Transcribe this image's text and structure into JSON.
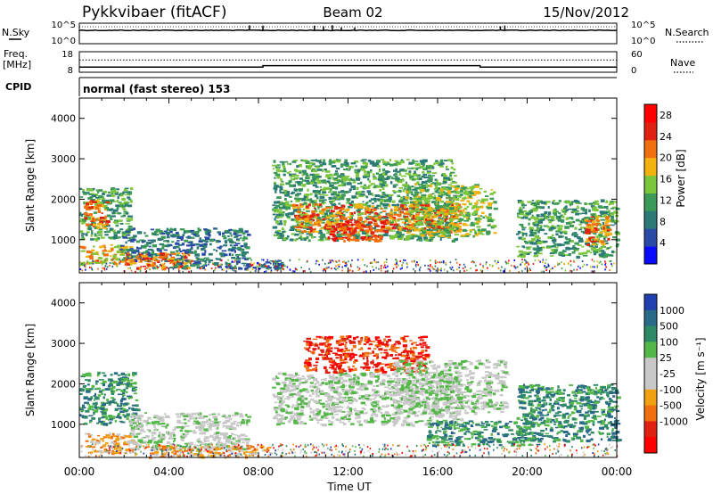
{
  "header": {
    "site": "Pykkvibaer (fitACF)",
    "beam": "Beam 02",
    "date": "15/Nov/2012"
  },
  "nsky_panel": {
    "left_label": "N.Sky",
    "left_ticks": [
      "10^5",
      "10^0"
    ],
    "right_ticks": [
      "10^5",
      "10^0"
    ],
    "right_label": "N.Search"
  },
  "freq_panel": {
    "left_label_1": "Freq.",
    "left_label_2": "[MHz]",
    "left_ticks": [
      "18",
      "8"
    ],
    "right_ticks": [
      "60",
      "0"
    ],
    "right_label": "Nave",
    "freq_steps": [
      {
        "t": 0,
        "v": 10.5
      },
      {
        "t": 8.2,
        "v": 10.5
      },
      {
        "t": 8.2,
        "v": 11.2
      },
      {
        "t": 17.9,
        "v": 11.2
      },
      {
        "t": 17.9,
        "v": 10.5
      },
      {
        "t": 24,
        "v": 10.5
      }
    ],
    "nave_level": 36
  },
  "cpid": {
    "label": "CPID",
    "mode": "normal (fast stereo) 153"
  },
  "colors": {
    "power_scale": [
      "#0a0aff",
      "#2a4aa8",
      "#2c7a76",
      "#3c9a58",
      "#7cc63c",
      "#f2b310",
      "#f07010",
      "#e02010",
      "#ff0000"
    ],
    "velocity_scale": [
      "#2040b0",
      "#2a6a88",
      "#2e8a66",
      "#54b848",
      "#c8c8c8",
      "#c8c8c8",
      "#f0a010",
      "#f07010",
      "#e02010",
      "#ff0000"
    ],
    "ground_scatter": "#bebebe"
  },
  "chart_data": [
    {
      "type": "line",
      "title": "",
      "series": [
        {
          "name": "N.Sky"
        }
      ],
      "xlim": [
        0,
        24
      ],
      "ylabel": "N.Sky",
      "y2label": "N.Search",
      "spikes_hours": [
        7.6,
        8.2,
        10.5,
        10.9,
        11.3,
        11.7,
        12.3,
        18.8,
        19.0
      ],
      "baseline": "near 10^0"
    },
    {
      "type": "line",
      "series": [
        {
          "name": "Freq."
        },
        {
          "name": "Nave"
        }
      ],
      "xlim": [
        0,
        24
      ],
      "ylim": [
        8,
        18
      ],
      "y2lim": [
        0,
        60
      ],
      "freq_mhz": [
        [
          0,
          10.5
        ],
        [
          8.2,
          10.5
        ],
        [
          8.2,
          11.2
        ],
        [
          17.9,
          11.2
        ],
        [
          17.9,
          10.5
        ],
        [
          24,
          10.5
        ]
      ]
    },
    {
      "type": "heatmap",
      "panel": "power",
      "xlabel": "",
      "ylabel": "Slant Range [km]",
      "xlim": [
        0,
        24
      ],
      "ylim": [
        180,
        4500
      ],
      "y_ticks": [
        1000,
        2000,
        3000,
        4000
      ],
      "colorbar_label": "Power [dB]",
      "colorbar_ticks": [
        4,
        8,
        12,
        16,
        20,
        24,
        28
      ],
      "colorbar_range": [
        0,
        30
      ],
      "regions": [
        {
          "t0": 0.0,
          "t1": 2.3,
          "r0": 400,
          "r1": 900,
          "level": 5
        },
        {
          "t0": 0.0,
          "t1": 2.3,
          "r0": 1000,
          "r1": 2300,
          "level": 3
        },
        {
          "t0": 0.2,
          "t1": 1.2,
          "r0": 1300,
          "r1": 2000,
          "level": 6
        },
        {
          "t0": 1.8,
          "t1": 7.5,
          "r0": 500,
          "r1": 1300,
          "level": 2
        },
        {
          "t0": 2.0,
          "t1": 5.0,
          "r0": 300,
          "r1": 700,
          "level": 6
        },
        {
          "t0": 4.0,
          "t1": 9.0,
          "r0": 300,
          "r1": 500,
          "level": 2
        },
        {
          "t0": 8.6,
          "t1": 16.8,
          "r0": 1000,
          "r1": 3000,
          "level": 3
        },
        {
          "t0": 9.5,
          "t1": 17.0,
          "r0": 1200,
          "r1": 1900,
          "level": 6
        },
        {
          "t0": 11.0,
          "t1": 13.5,
          "r0": 1000,
          "r1": 1500,
          "level": 7
        },
        {
          "t0": 14.5,
          "t1": 18.5,
          "r0": 1100,
          "r1": 2400,
          "level": 4
        },
        {
          "t0": 19.5,
          "t1": 24.0,
          "r0": 600,
          "r1": 2000,
          "level": 3
        },
        {
          "t0": 22.5,
          "t1": 23.6,
          "r0": 900,
          "r1": 1600,
          "level": 6
        }
      ]
    },
    {
      "type": "heatmap",
      "panel": "velocity",
      "xlabel": "Time UT",
      "ylabel": "Slant Range [km]",
      "xlim": [
        0,
        24
      ],
      "ylim": [
        180,
        4500
      ],
      "y_ticks": [
        1000,
        2000,
        3000,
        4000
      ],
      "x_ticks": [
        "00:00",
        "04:00",
        "08:00",
        "12:00",
        "16:00",
        "20:00",
        "00:00"
      ],
      "colorbar_label": "Velocity [m s⁻¹]",
      "colorbar_ticks": [
        1000,
        500,
        100,
        25,
        -25,
        -100,
        -500,
        -1000
      ],
      "regions": [
        {
          "t0": 0.0,
          "t1": 2.5,
          "r0": 1000,
          "r1": 2300,
          "level": 2
        },
        {
          "t0": 0.2,
          "t1": 2.5,
          "r0": 300,
          "r1": 800,
          "level": 6
        },
        {
          "t0": 2.2,
          "t1": 7.5,
          "r0": 400,
          "r1": 1300,
          "level": 4
        },
        {
          "t0": 3.0,
          "t1": 8.5,
          "r0": 200,
          "r1": 500,
          "level": 6
        },
        {
          "t0": 8.6,
          "t1": 17.0,
          "r0": 1000,
          "r1": 2300,
          "level": 4
        },
        {
          "t0": 10.0,
          "t1": 15.5,
          "r0": 2300,
          "r1": 3200,
          "level": 8
        },
        {
          "t0": 14.0,
          "t1": 19.0,
          "r0": 1300,
          "r1": 2600,
          "level": 4
        },
        {
          "t0": 15.5,
          "t1": 20.5,
          "r0": 500,
          "r1": 1100,
          "level": 2
        },
        {
          "t0": 19.5,
          "t1": 24.0,
          "r0": 600,
          "r1": 2000,
          "level": 2
        }
      ]
    }
  ]
}
